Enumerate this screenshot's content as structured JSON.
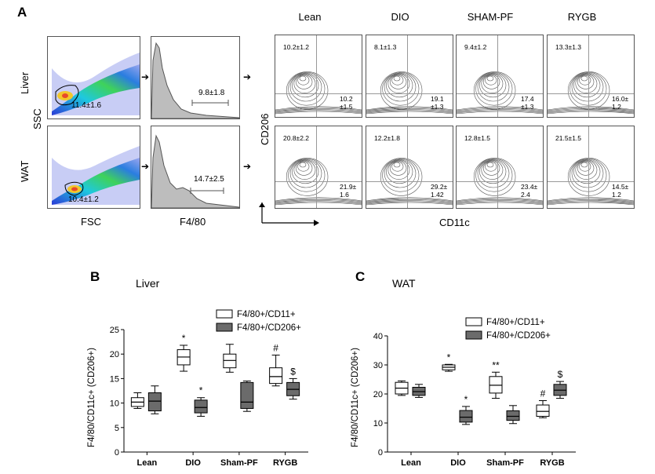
{
  "panel_a": {
    "letter": "A",
    "row_labels": [
      "Liver",
      "WAT"
    ],
    "scatter_y_label": "SSC",
    "scatter_x_label": "FSC",
    "hist_x_label": "F4/80",
    "contour_y_label": "CD206",
    "contour_x_label": "CD11c",
    "group_labels": [
      "Lean",
      "DIO",
      "SHAM-PF",
      "RYGB"
    ],
    "scatter_gates": [
      "11.4±1.6",
      "10.4±1.2"
    ],
    "hist_gates": [
      "9.8±1.8",
      "14.7±2.5"
    ],
    "contour_rows": [
      [
        {
          "tl": "10.2±1.2",
          "br1": "10.2",
          "br2": "±1.5"
        },
        {
          "tl": "8.1±1.3",
          "br1": "19.1",
          "br2": "±1.3"
        },
        {
          "tl": "9.4±1.2",
          "br1": "17.4",
          "br2": "±1.3"
        },
        {
          "tl": "13.3±1.3",
          "br1": "16.0±",
          "br2": "1.2"
        }
      ],
      [
        {
          "tl": "20.8±2.2",
          "br1": "21.9±",
          "br2": "1.6"
        },
        {
          "tl": "12.2±1.8",
          "br1": "29.2±",
          "br2": "1.42"
        },
        {
          "tl": "12.8±1.5",
          "br1": "23.4±",
          "br2": "2.4"
        },
        {
          "tl": "21.5±1.5",
          "br1": "14.5±",
          "br2": "1.2"
        }
      ]
    ]
  },
  "panel_b": {
    "letter": "B",
    "tissue_title": "Liver"
  },
  "panel_c": {
    "letter": "C",
    "tissue_title": "WAT"
  },
  "colors": {
    "open_box": "#ffffff",
    "filled_box": "#6b6b6b",
    "stroke": "#000000"
  },
  "chart_data": [
    {
      "type": "box",
      "title": "Liver",
      "ylabel": "F4/80/CD11c+ (CD206+)",
      "categories": [
        "Lean",
        "DIO",
        "Sham-PF",
        "RYGB"
      ],
      "ylim": [
        0,
        25
      ],
      "yticks": [
        "0",
        "5",
        "10",
        "15",
        "20",
        "25"
      ],
      "series": [
        {
          "name": "F4/80+/CD11+",
          "fill": "open",
          "boxes": [
            {
              "min": 8.9,
              "q1": 9.3,
              "median": 10.2,
              "q3": 11.1,
              "max": 12.1,
              "annotation": ""
            },
            {
              "min": 16.5,
              "q1": 17.8,
              "median": 19.4,
              "q3": 20.9,
              "max": 21.8,
              "annotation": "*"
            },
            {
              "min": 16.3,
              "q1": 17.2,
              "median": 18.7,
              "q3": 20.0,
              "max": 22.0,
              "annotation": ""
            },
            {
              "min": 13.5,
              "q1": 14.0,
              "median": 15.4,
              "q3": 17.2,
              "max": 19.8,
              "annotation": "#"
            }
          ]
        },
        {
          "name": "F4/80+/CD206+",
          "fill": "filled",
          "boxes": [
            {
              "min": 7.8,
              "q1": 8.4,
              "median": 10.4,
              "q3": 12.1,
              "max": 13.5,
              "annotation": ""
            },
            {
              "min": 7.3,
              "q1": 8.0,
              "median": 9.1,
              "q3": 10.6,
              "max": 11.1,
              "annotation": "*"
            },
            {
              "min": 8.3,
              "q1": 8.9,
              "median": 10.2,
              "q3": 14.2,
              "max": 14.5,
              "annotation": ""
            },
            {
              "min": 10.8,
              "q1": 11.5,
              "median": 12.8,
              "q3": 14.2,
              "max": 15.0,
              "annotation": "$"
            }
          ]
        }
      ]
    },
    {
      "type": "box",
      "title": "WAT",
      "ylabel": "F4/80/CD11c+ (CD206+)",
      "categories": [
        "Lean",
        "DIO",
        "Sham-PF",
        "RYGB"
      ],
      "ylim": [
        0,
        40
      ],
      "yticks": [
        "0",
        "10",
        "20",
        "30",
        "40"
      ],
      "series": [
        {
          "name": "F4/80+/CD11+",
          "fill": "open",
          "boxes": [
            {
              "min": 19.5,
              "q1": 20.0,
              "median": 22.0,
              "q3": 24.0,
              "max": 24.5,
              "annotation": ""
            },
            {
              "min": 27.8,
              "q1": 28.3,
              "median": 29.2,
              "q3": 30.0,
              "max": 30.2,
              "annotation": "*"
            },
            {
              "min": 18.5,
              "q1": 20.3,
              "median": 23.0,
              "q3": 26.0,
              "max": 27.5,
              "annotation": "**"
            },
            {
              "min": 11.8,
              "q1": 12.3,
              "median": 14.0,
              "q3": 16.2,
              "max": 17.7,
              "annotation": "#"
            }
          ]
        },
        {
          "name": "F4/80+/CD206+",
          "fill": "filled",
          "boxes": [
            {
              "min": 18.8,
              "q1": 19.5,
              "median": 20.8,
              "q3": 22.3,
              "max": 23.3,
              "annotation": ""
            },
            {
              "min": 9.5,
              "q1": 10.3,
              "median": 12.0,
              "q3": 14.3,
              "max": 15.7,
              "annotation": "*"
            },
            {
              "min": 9.8,
              "q1": 10.9,
              "median": 12.3,
              "q3": 14.2,
              "max": 16.0,
              "annotation": ""
            },
            {
              "min": 18.5,
              "q1": 19.5,
              "median": 21.3,
              "q3": 23.3,
              "max": 24.3,
              "annotation": "$"
            }
          ]
        }
      ]
    }
  ]
}
